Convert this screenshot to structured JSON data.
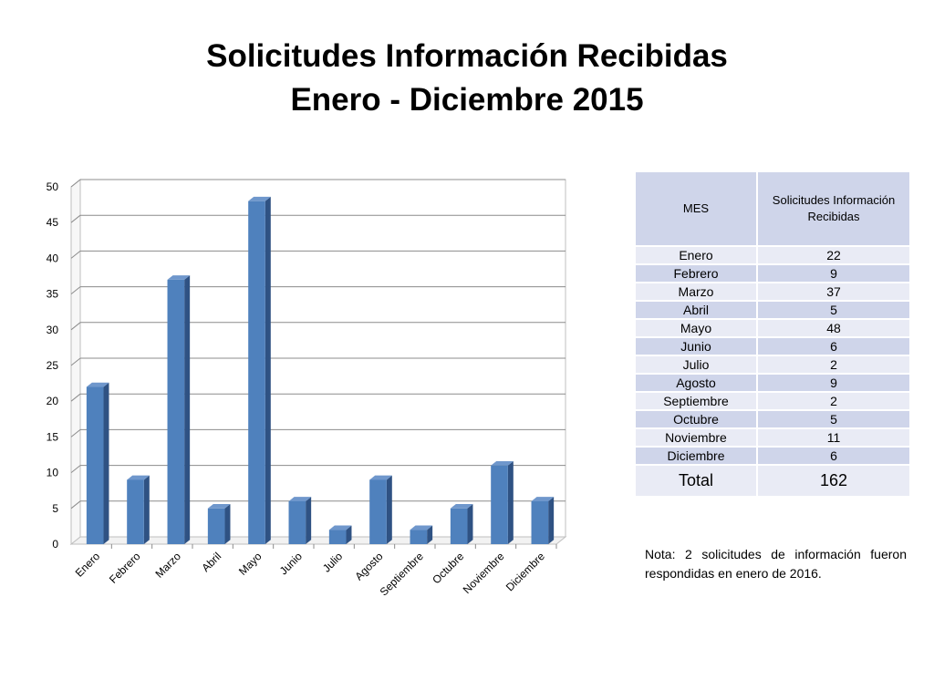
{
  "title": {
    "line1": "Solicitudes Información Recibidas",
    "line2": "Enero - Diciembre 2015"
  },
  "chart_data": {
    "type": "bar",
    "categories": [
      "Enero",
      "Febrero",
      "Marzo",
      "Abril",
      "Mayo",
      "Junio",
      "Julio",
      "Agosto",
      "Septiembre",
      "Octubre",
      "Noviembre",
      "Diciembre"
    ],
    "values": [
      22,
      9,
      37,
      5,
      48,
      6,
      2,
      9,
      2,
      5,
      11,
      6
    ],
    "ylim": [
      0,
      50
    ],
    "yticks": [
      0,
      5,
      10,
      15,
      20,
      25,
      30,
      35,
      40,
      45,
      50
    ],
    "grid": true,
    "bar_color": "#4f81bd",
    "style": "3d"
  },
  "table": {
    "headers": [
      "MES",
      "Solicitudes Información Recibidas"
    ],
    "rows": [
      [
        "Enero",
        "22"
      ],
      [
        "Febrero",
        "9"
      ],
      [
        "Marzo",
        "37"
      ],
      [
        "Abril",
        "5"
      ],
      [
        "Mayo",
        "48"
      ],
      [
        "Junio",
        "6"
      ],
      [
        "Julio",
        "2"
      ],
      [
        "Agosto",
        "9"
      ],
      [
        "Septiembre",
        "2"
      ],
      [
        "Octubre",
        "5"
      ],
      [
        "Noviembre",
        "11"
      ],
      [
        "Diciembre",
        "6"
      ]
    ],
    "total_label": "Total",
    "total_value": "162"
  },
  "note": "Nota: 2 solicitudes de información fueron respondidas en enero de 2016."
}
